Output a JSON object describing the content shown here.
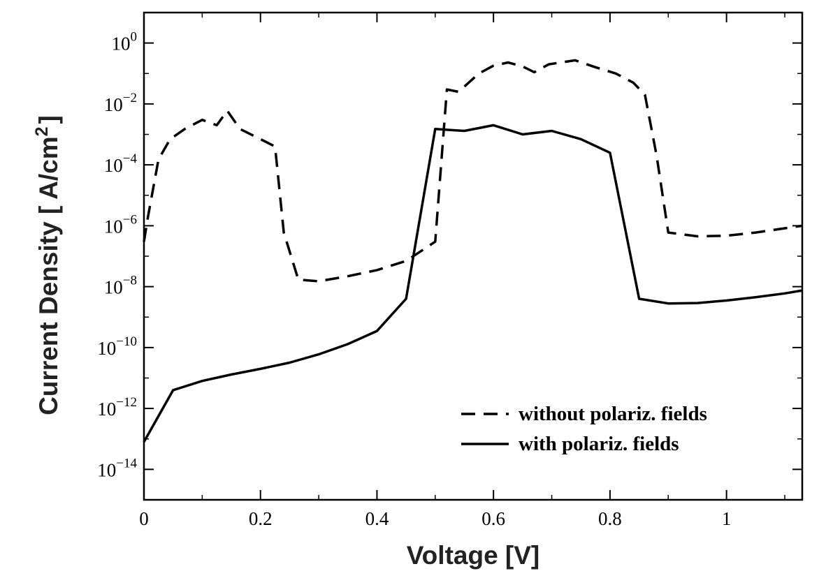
{
  "chart_data": {
    "type": "line",
    "title": "",
    "xlabel": "Voltage [V]",
    "ylabel": "Current Density [ A/cm",
    "ylabel_sup": "2",
    "ylabel_end": "]",
    "yscale": "log",
    "xlim": [
      0,
      1.13
    ],
    "ylim": [
      1e-15,
      10
    ],
    "x_ticks": [
      {
        "v": 0,
        "label": "0"
      },
      {
        "v": 0.2,
        "label": "0.2"
      },
      {
        "v": 0.4,
        "label": "0.4"
      },
      {
        "v": 0.6,
        "label": "0.6"
      },
      {
        "v": 0.8,
        "label": "0.8"
      },
      {
        "v": 1,
        "label": "1"
      }
    ],
    "y_ticks": [
      {
        "v": 1,
        "base": "10",
        "exp": "0"
      },
      {
        "v": 0.01,
        "base": "10",
        "exp": "−2"
      },
      {
        "v": 0.0001,
        "base": "10",
        "exp": "−4"
      },
      {
        "v": 1e-06,
        "base": "10",
        "exp": "−6"
      },
      {
        "v": 1e-08,
        "base": "10",
        "exp": "−8"
      },
      {
        "v": 1e-10,
        "base": "10",
        "exp": "−10"
      },
      {
        "v": 1e-12,
        "base": "10",
        "exp": "−12"
      },
      {
        "v": 1e-14,
        "base": "10",
        "exp": "−14"
      }
    ],
    "grid": false,
    "legend_position": "bottom-right",
    "series": [
      {
        "name": "without polariz. fields",
        "style": "dashed",
        "color": "#000000",
        "points": [
          [
            0.0,
            3e-07
          ],
          [
            0.007,
            2e-06
          ],
          [
            0.025,
            0.00015
          ],
          [
            0.045,
            0.0007
          ],
          [
            0.07,
            0.0015
          ],
          [
            0.1,
            0.003
          ],
          [
            0.125,
            0.002
          ],
          [
            0.143,
            0.006
          ],
          [
            0.165,
            0.0015
          ],
          [
            0.2,
            0.0007
          ],
          [
            0.225,
            0.0004
          ],
          [
            0.24,
            6e-07
          ],
          [
            0.265,
            1.7e-08
          ],
          [
            0.3,
            1.5e-08
          ],
          [
            0.35,
            2.2e-08
          ],
          [
            0.4,
            3.5e-08
          ],
          [
            0.45,
            7e-08
          ],
          [
            0.5,
            3e-07
          ],
          [
            0.52,
            0.03
          ],
          [
            0.54,
            0.025
          ],
          [
            0.575,
            0.1
          ],
          [
            0.6,
            0.18
          ],
          [
            0.625,
            0.23
          ],
          [
            0.65,
            0.17
          ],
          [
            0.67,
            0.11
          ],
          [
            0.695,
            0.2
          ],
          [
            0.74,
            0.27
          ],
          [
            0.775,
            0.16
          ],
          [
            0.81,
            0.1
          ],
          [
            0.84,
            0.05
          ],
          [
            0.86,
            0.02
          ],
          [
            0.88,
            0.0002
          ],
          [
            0.9,
            6e-07
          ],
          [
            0.95,
            4.5e-07
          ],
          [
            1.0,
            4.7e-07
          ],
          [
            1.05,
            6e-07
          ],
          [
            1.13,
            1e-06
          ]
        ]
      },
      {
        "name": "with polariz. fields",
        "style": "solid",
        "color": "#000000",
        "points": [
          [
            0.0,
            8e-14
          ],
          [
            0.05,
            4e-12
          ],
          [
            0.1,
            8e-12
          ],
          [
            0.15,
            1.3e-11
          ],
          [
            0.2,
            2e-11
          ],
          [
            0.25,
            3.2e-11
          ],
          [
            0.3,
            6e-11
          ],
          [
            0.35,
            1.3e-10
          ],
          [
            0.4,
            3.5e-10
          ],
          [
            0.45,
            4e-09
          ],
          [
            0.5,
            0.0015
          ],
          [
            0.55,
            0.0013
          ],
          [
            0.6,
            0.002
          ],
          [
            0.65,
            0.001
          ],
          [
            0.7,
            0.0013
          ],
          [
            0.75,
            0.0007
          ],
          [
            0.8,
            0.00025
          ],
          [
            0.85,
            4e-09
          ],
          [
            0.9,
            2.8e-09
          ],
          [
            0.95,
            2.9e-09
          ],
          [
            1.0,
            3.5e-09
          ],
          [
            1.05,
            4.5e-09
          ],
          [
            1.1,
            6e-09
          ],
          [
            1.13,
            7.5e-09
          ]
        ]
      }
    ]
  }
}
